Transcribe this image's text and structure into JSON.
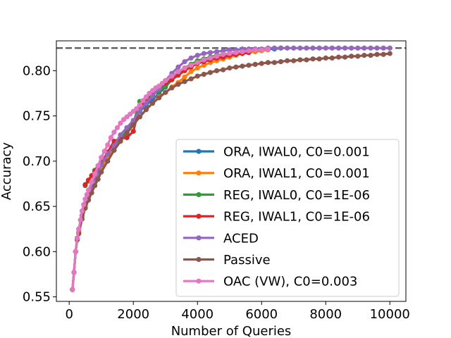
{
  "chart_data": {
    "type": "line",
    "title": "",
    "xlabel": "Number of Queries",
    "ylabel": "Accuracy",
    "xlim": [
      -400,
      10500
    ],
    "ylim": [
      0.545,
      0.833
    ],
    "xticks": [
      0,
      2000,
      4000,
      6000,
      8000,
      10000
    ],
    "xtick_labels": [
      "0",
      "2000",
      "4000",
      "6000",
      "8000",
      "10000"
    ],
    "yticks": [
      0.55,
      0.6,
      0.65,
      0.7,
      0.75,
      0.8
    ],
    "ytick_labels": [
      "0.55",
      "0.60",
      "0.65",
      "0.70",
      "0.75",
      "0.80"
    ],
    "reference_line": {
      "y": 0.825,
      "style": "dashed",
      "color": "#555555"
    },
    "legend_position": "lower-right",
    "series": [
      {
        "name": "ORA, IWAL0, C0=0.001",
        "color": "#1f77b4",
        "x": [
          100,
          150,
          200,
          250,
          300,
          400,
          500,
          600,
          700,
          800,
          900,
          1000,
          1200,
          1400,
          1600,
          1800,
          2000,
          2200,
          2400,
          2600,
          2800,
          3000,
          3200,
          3400,
          3600,
          3800,
          4000,
          4200,
          4400,
          4600,
          4800,
          5000,
          5200,
          5400,
          5600,
          5800,
          6000,
          6200,
          6400,
          6600
        ],
        "y": [
          0.558,
          0.577,
          0.6,
          0.615,
          0.625,
          0.64,
          0.652,
          0.661,
          0.671,
          0.679,
          0.687,
          0.696,
          0.708,
          0.717,
          0.729,
          0.737,
          0.745,
          0.755,
          0.762,
          0.768,
          0.775,
          0.782,
          0.79,
          0.797,
          0.803,
          0.807,
          0.81,
          0.812,
          0.814,
          0.816,
          0.818,
          0.819,
          0.82,
          0.821,
          0.822,
          0.823,
          0.823,
          0.824,
          0.824,
          0.825
        ]
      },
      {
        "name": "ORA, IWAL1, C0=0.001",
        "color": "#ff7f0e",
        "x": [
          100,
          150,
          200,
          250,
          300,
          400,
          500,
          600,
          700,
          800,
          900,
          1000,
          1200,
          1400,
          1600,
          1800,
          2000,
          2200,
          2400,
          2600,
          2800,
          3000,
          3200,
          3400,
          3600,
          3800,
          4000,
          4200,
          4400,
          4600,
          4800,
          5000,
          5200,
          5400,
          5600,
          5800,
          6000,
          6200
        ],
        "y": [
          0.558,
          0.577,
          0.6,
          0.613,
          0.622,
          0.638,
          0.65,
          0.66,
          0.669,
          0.677,
          0.685,
          0.693,
          0.705,
          0.714,
          0.724,
          0.732,
          0.741,
          0.749,
          0.757,
          0.764,
          0.771,
          0.776,
          0.782,
          0.787,
          0.793,
          0.799,
          0.803,
          0.806,
          0.809,
          0.811,
          0.813,
          0.815,
          0.817,
          0.819,
          0.82,
          0.821,
          0.822,
          0.823
        ]
      },
      {
        "name": "REG, IWAL0, C0=1E-06",
        "color": "#2ca02c",
        "x": [
          500,
          600,
          700,
          800,
          900,
          1000,
          1200,
          1400,
          1600,
          1800,
          2000,
          2200,
          2400,
          2600,
          2800,
          3000,
          3200,
          3400,
          3600,
          3800,
          4000,
          4200,
          4400,
          4600,
          4800,
          5000,
          5200,
          5400,
          5600,
          5800,
          6000
        ],
        "y": [
          0.673,
          0.678,
          0.684,
          0.69,
          0.695,
          0.7,
          0.709,
          0.718,
          0.725,
          0.733,
          0.742,
          0.766,
          0.77,
          0.774,
          0.778,
          0.783,
          0.792,
          0.798,
          0.803,
          0.807,
          0.811,
          0.813,
          0.815,
          0.817,
          0.818,
          0.819,
          0.82,
          0.821,
          0.822,
          0.823,
          0.823
        ]
      },
      {
        "name": "REG, IWAL1, C0=1E-06",
        "color": "#d62728",
        "x": [
          500,
          600,
          700,
          800,
          900,
          1000,
          1200,
          1400,
          1600,
          1800,
          2000,
          2200,
          2400,
          2600,
          2800,
          3000,
          3200,
          3400,
          3600,
          3800,
          4000,
          4200,
          4400,
          4600,
          4800,
          5000,
          5200,
          5400,
          5600
        ],
        "y": [
          0.674,
          0.679,
          0.684,
          0.689,
          0.692,
          0.697,
          0.71,
          0.722,
          0.725,
          0.726,
          0.733,
          0.761,
          0.766,
          0.773,
          0.78,
          0.786,
          0.79,
          0.795,
          0.8,
          0.804,
          0.808,
          0.81,
          0.812,
          0.814,
          0.815,
          0.817,
          0.818,
          0.819,
          0.82
        ]
      },
      {
        "name": "ACED",
        "color": "#9467bd",
        "x": [
          100,
          150,
          200,
          250,
          300,
          400,
          500,
          600,
          700,
          800,
          900,
          1000,
          1200,
          1400,
          1600,
          1800,
          2000,
          2200,
          2400,
          2600,
          2800,
          3000,
          3200,
          3400,
          3600,
          3800,
          4000,
          4200,
          4400,
          4600,
          4800,
          5000,
          5200,
          5400,
          5600,
          5800,
          6000,
          6200,
          6400,
          6600,
          6800,
          7000,
          7200,
          7400,
          7600,
          7800,
          8000,
          8200,
          8400,
          8600,
          8800,
          9000,
          9200,
          9400,
          9600,
          9800,
          10000
        ],
        "y": [
          0.558,
          0.577,
          0.6,
          0.615,
          0.625,
          0.64,
          0.652,
          0.661,
          0.671,
          0.679,
          0.687,
          0.696,
          0.708,
          0.717,
          0.729,
          0.737,
          0.745,
          0.756,
          0.764,
          0.772,
          0.78,
          0.789,
          0.797,
          0.804,
          0.81,
          0.814,
          0.817,
          0.819,
          0.82,
          0.821,
          0.822,
          0.823,
          0.823,
          0.824,
          0.824,
          0.824,
          0.824,
          0.825,
          0.825,
          0.825,
          0.825,
          0.825,
          0.825,
          0.825,
          0.825,
          0.825,
          0.825,
          0.825,
          0.825,
          0.825,
          0.825,
          0.825,
          0.825,
          0.825,
          0.825,
          0.825,
          0.825
        ]
      },
      {
        "name": "Passive",
        "color": "#8c564b",
        "x": [
          100,
          150,
          200,
          250,
          300,
          400,
          500,
          600,
          700,
          800,
          900,
          1000,
          1200,
          1400,
          1600,
          1800,
          2000,
          2200,
          2400,
          2600,
          2800,
          3000,
          3200,
          3400,
          3600,
          3800,
          4000,
          4200,
          4400,
          4600,
          4800,
          5000,
          5200,
          5400,
          5600,
          5800,
          6000,
          6200,
          6400,
          6600,
          6800,
          7000,
          7200,
          7400,
          7600,
          7800,
          8000,
          8200,
          8400,
          8600,
          8800,
          9000,
          9200,
          9400,
          9600,
          9800,
          10000
        ],
        "y": [
          0.558,
          0.577,
          0.6,
          0.613,
          0.62,
          0.636,
          0.648,
          0.657,
          0.665,
          0.673,
          0.68,
          0.688,
          0.7,
          0.712,
          0.722,
          0.731,
          0.74,
          0.749,
          0.757,
          0.764,
          0.77,
          0.776,
          0.781,
          0.785,
          0.788,
          0.791,
          0.794,
          0.796,
          0.798,
          0.8,
          0.801,
          0.803,
          0.804,
          0.805,
          0.806,
          0.807,
          0.808,
          0.809,
          0.809,
          0.81,
          0.811,
          0.811,
          0.812,
          0.812,
          0.813,
          0.813,
          0.814,
          0.814,
          0.815,
          0.815,
          0.816,
          0.816,
          0.817,
          0.817,
          0.818,
          0.818,
          0.819
        ]
      },
      {
        "name": "OAC (VW), C0=0.003",
        "color": "#e377c2",
        "x": [
          100,
          150,
          200,
          250,
          300,
          350,
          400,
          450,
          500,
          550,
          600,
          700,
          800,
          900,
          1000,
          1100,
          1200,
          1300,
          1400,
          1500,
          1600,
          1700,
          1800,
          1900,
          2000,
          2100,
          2200,
          2300,
          2400,
          2500,
          2600,
          2700,
          2800,
          2900,
          3000,
          3200,
          3400,
          3600,
          3800,
          4000,
          4200,
          4400,
          4600,
          4800,
          5000,
          5200,
          5400,
          5600,
          5800,
          6000,
          6200
        ],
        "y": [
          0.558,
          0.577,
          0.6,
          0.615,
          0.625,
          0.635,
          0.645,
          0.652,
          0.658,
          0.663,
          0.668,
          0.677,
          0.686,
          0.695,
          0.704,
          0.711,
          0.718,
          0.726,
          0.732,
          0.737,
          0.742,
          0.746,
          0.749,
          0.752,
          0.755,
          0.758,
          0.762,
          0.767,
          0.771,
          0.775,
          0.778,
          0.781,
          0.783,
          0.786,
          0.789,
          0.794,
          0.799,
          0.803,
          0.806,
          0.809,
          0.812,
          0.814,
          0.816,
          0.818,
          0.819,
          0.82,
          0.821,
          0.822,
          0.823,
          0.823,
          0.824
        ]
      }
    ]
  }
}
